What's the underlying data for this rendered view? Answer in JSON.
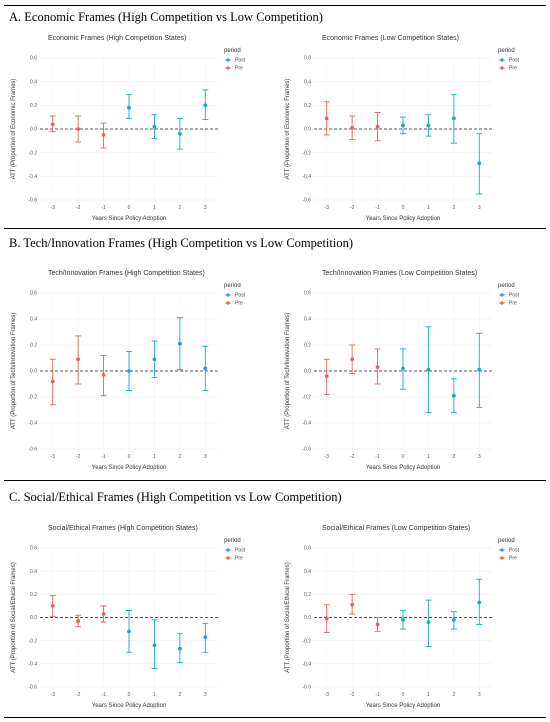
{
  "sections": [
    {
      "title": "A. Economic Frames (High Competition vs Low Competition)",
      "panels": [
        {
          "chart_data": {
            "type": "scatter",
            "title": "Economic Frames (High Competition States)",
            "xlabel": "Years Since Policy Adoption",
            "ylabel": "ATT (Proportion of Economic Frames)",
            "x": [
              -3,
              -2,
              -1,
              0,
              1,
              2,
              3
            ],
            "x_ticks": [
              "-3",
              "-2",
              "-1",
              "0",
              "1",
              "2",
              "3"
            ],
            "y_ticks": [
              "0.6",
              "0.4",
              "0.2",
              "0.0",
              "-0.2",
              "-0.4",
              "-0.6"
            ],
            "ylim": [
              -0.6,
              0.6
            ],
            "reference_line": 0,
            "legend_title": "period",
            "legend_position": "top-right",
            "series": [
              {
                "name": "Post",
                "color": "#1aa7c9",
                "points": [
                  {
                    "x": 0,
                    "y": 0.18,
                    "lo": 0.09,
                    "hi": 0.29
                  },
                  {
                    "x": 1,
                    "y": 0.02,
                    "lo": -0.08,
                    "hi": 0.12
                  },
                  {
                    "x": 2,
                    "y": -0.04,
                    "lo": -0.17,
                    "hi": 0.09
                  },
                  {
                    "x": 3,
                    "y": 0.2,
                    "lo": 0.08,
                    "hi": 0.33
                  }
                ]
              },
              {
                "name": "Pre",
                "color": "#e8605a",
                "points": [
                  {
                    "x": -3,
                    "y": 0.04,
                    "lo": -0.02,
                    "hi": 0.11
                  },
                  {
                    "x": -2,
                    "y": 0.0,
                    "lo": -0.11,
                    "hi": 0.11
                  },
                  {
                    "x": -1,
                    "y": -0.05,
                    "lo": -0.16,
                    "hi": 0.05
                  }
                ]
              }
            ]
          }
        },
        {
          "chart_data": {
            "type": "scatter",
            "title": "Economic Frames (Low Competition States)",
            "xlabel": "Years Since Policy Adoption",
            "ylabel": "ATT (Proportion of Economic Frames)",
            "x": [
              -3,
              -2,
              -1,
              0,
              1,
              2,
              3
            ],
            "x_ticks": [
              "-3",
              "-2",
              "-1",
              "0",
              "1",
              "2",
              "3"
            ],
            "y_ticks": [
              "0.6",
              "0.4",
              "0.2",
              "0.0",
              "-0.2",
              "-0.4",
              "-0.6"
            ],
            "ylim": [
              -0.6,
              0.6
            ],
            "reference_line": 0,
            "legend_title": "period",
            "legend_position": "top-right",
            "series": [
              {
                "name": "Post",
                "color": "#1aa7c9",
                "points": [
                  {
                    "x": 0,
                    "y": 0.03,
                    "lo": -0.04,
                    "hi": 0.1
                  },
                  {
                    "x": 1,
                    "y": 0.03,
                    "lo": -0.06,
                    "hi": 0.12
                  },
                  {
                    "x": 2,
                    "y": 0.09,
                    "lo": -0.12,
                    "hi": 0.29
                  },
                  {
                    "x": 3,
                    "y": -0.29,
                    "lo": -0.55,
                    "hi": -0.04
                  }
                ]
              },
              {
                "name": "Pre",
                "color": "#e8605a",
                "points": [
                  {
                    "x": -3,
                    "y": 0.09,
                    "lo": -0.05,
                    "hi": 0.23
                  },
                  {
                    "x": -2,
                    "y": 0.01,
                    "lo": -0.09,
                    "hi": 0.11
                  },
                  {
                    "x": -1,
                    "y": 0.02,
                    "lo": -0.1,
                    "hi": 0.14
                  }
                ]
              }
            ]
          }
        }
      ]
    },
    {
      "title": "B. Tech/Innovation Frames (High Competition vs Low Competition)",
      "panels": [
        {
          "chart_data": {
            "type": "scatter",
            "title": "Tech/Innovation Frames (High Competition States)",
            "xlabel": "Years Since Policy Adoption",
            "ylabel": "ATT (Proportion of Tech/Innovation Frames)",
            "x": [
              -3,
              -2,
              -1,
              0,
              1,
              2,
              3
            ],
            "x_ticks": [
              "-3",
              "-2",
              "-1",
              "0",
              "1",
              "2",
              "3"
            ],
            "y_ticks": [
              "0.6",
              "0.4",
              "0.2",
              "0.0",
              "-0.2",
              "-0.4",
              "-0.6"
            ],
            "ylim": [
              -0.6,
              0.6
            ],
            "reference_line": 0,
            "legend_title": "period",
            "legend_position": "top-right",
            "series": [
              {
                "name": "Post",
                "color": "#1aa7c9",
                "points": [
                  {
                    "x": 0,
                    "y": 0.0,
                    "lo": -0.15,
                    "hi": 0.15
                  },
                  {
                    "x": 1,
                    "y": 0.09,
                    "lo": -0.05,
                    "hi": 0.23
                  },
                  {
                    "x": 2,
                    "y": 0.21,
                    "lo": 0.01,
                    "hi": 0.41
                  },
                  {
                    "x": 3,
                    "y": 0.02,
                    "lo": -0.15,
                    "hi": 0.19
                  }
                ]
              },
              {
                "name": "Pre",
                "color": "#e8605a",
                "points": [
                  {
                    "x": -3,
                    "y": -0.08,
                    "lo": -0.26,
                    "hi": 0.09
                  },
                  {
                    "x": -2,
                    "y": 0.09,
                    "lo": -0.1,
                    "hi": 0.27
                  },
                  {
                    "x": -1,
                    "y": -0.03,
                    "lo": -0.19,
                    "hi": 0.12
                  }
                ]
              }
            ]
          }
        },
        {
          "chart_data": {
            "type": "scatter",
            "title": "Tech/Innovation Frames (Low Competition States)",
            "xlabel": "Years Since Policy Adoption",
            "ylabel": "ATT (Proportion of Tech/Innovation Frames)",
            "x": [
              -3,
              -2,
              -1,
              0,
              1,
              2,
              3
            ],
            "x_ticks": [
              "-3",
              "-2",
              "-1",
              "0",
              "1",
              "2",
              "3"
            ],
            "y_ticks": [
              "0.6",
              "0.4",
              "0.2",
              "0.0",
              "-0.2",
              "-0.4",
              "-0.6"
            ],
            "ylim": [
              -0.6,
              0.6
            ],
            "reference_line": 0,
            "legend_title": "period",
            "legend_position": "top-right",
            "series": [
              {
                "name": "Post",
                "color": "#1aa7c9",
                "points": [
                  {
                    "x": 0,
                    "y": 0.02,
                    "lo": -0.14,
                    "hi": 0.17
                  },
                  {
                    "x": 1,
                    "y": 0.01,
                    "lo": -0.32,
                    "hi": 0.34
                  },
                  {
                    "x": 2,
                    "y": -0.19,
                    "lo": -0.32,
                    "hi": -0.06
                  },
                  {
                    "x": 3,
                    "y": 0.01,
                    "lo": -0.28,
                    "hi": 0.29
                  }
                ]
              },
              {
                "name": "Pre",
                "color": "#e8605a",
                "points": [
                  {
                    "x": -3,
                    "y": -0.04,
                    "lo": -0.18,
                    "hi": 0.09
                  },
                  {
                    "x": -2,
                    "y": 0.09,
                    "lo": -0.02,
                    "hi": 0.2
                  },
                  {
                    "x": -1,
                    "y": 0.03,
                    "lo": -0.1,
                    "hi": 0.17
                  }
                ]
              }
            ]
          }
        }
      ]
    },
    {
      "title": "C. Social/Ethical Frames (High Competition vs Low Competition)",
      "panels": [
        {
          "chart_data": {
            "type": "scatter",
            "title": "Social/Ethical Frames (High Competition States)",
            "xlabel": "Years Since Policy Adoption",
            "ylabel": "ATT (Proportion of Social/Ethical Frames)",
            "x": [
              -3,
              -2,
              -1,
              0,
              1,
              2,
              3
            ],
            "x_ticks": [
              "-3",
              "-2",
              "-1",
              "0",
              "1",
              "2",
              "3"
            ],
            "y_ticks": [
              "0.6",
              "0.4",
              "0.2",
              "0.0",
              "-0.2",
              "-0.4",
              "-0.6"
            ],
            "ylim": [
              -0.6,
              0.6
            ],
            "reference_line": 0,
            "legend_title": "period",
            "legend_position": "top-right",
            "series": [
              {
                "name": "Post",
                "color": "#1aa7c9",
                "points": [
                  {
                    "x": 0,
                    "y": -0.12,
                    "lo": -0.3,
                    "hi": 0.06
                  },
                  {
                    "x": 1,
                    "y": -0.24,
                    "lo": -0.44,
                    "hi": -0.02
                  },
                  {
                    "x": 2,
                    "y": -0.27,
                    "lo": -0.39,
                    "hi": -0.14
                  },
                  {
                    "x": 3,
                    "y": -0.17,
                    "lo": -0.3,
                    "hi": -0.05
                  }
                ]
              },
              {
                "name": "Pre",
                "color": "#e8605a",
                "points": [
                  {
                    "x": -3,
                    "y": 0.1,
                    "lo": 0.01,
                    "hi": 0.19
                  },
                  {
                    "x": -2,
                    "y": -0.03,
                    "lo": -0.08,
                    "hi": 0.02
                  },
                  {
                    "x": -1,
                    "y": 0.03,
                    "lo": -0.04,
                    "hi": 0.1
                  }
                ]
              }
            ]
          }
        },
        {
          "chart_data": {
            "type": "scatter",
            "title": "Social/Ethical Frames (Low Competition States)",
            "xlabel": "Years Since Policy Adoption",
            "ylabel": "ATT (Proportion of Social/Ethical Frames)",
            "x": [
              -3,
              -2,
              -1,
              0,
              1,
              2,
              3
            ],
            "x_ticks": [
              "-3",
              "-2",
              "-1",
              "0",
              "1",
              "2",
              "3"
            ],
            "y_ticks": [
              "0.6",
              "0.4",
              "0.2",
              "0.0",
              "-0.2",
              "-0.4",
              "-0.6"
            ],
            "ylim": [
              -0.6,
              0.6
            ],
            "reference_line": 0,
            "legend_title": "period",
            "legend_position": "top-right",
            "series": [
              {
                "name": "Post",
                "color": "#1aa7c9",
                "points": [
                  {
                    "x": 0,
                    "y": -0.02,
                    "lo": -0.1,
                    "hi": 0.06
                  },
                  {
                    "x": 1,
                    "y": -0.04,
                    "lo": -0.25,
                    "hi": 0.15
                  },
                  {
                    "x": 2,
                    "y": -0.02,
                    "lo": -0.1,
                    "hi": 0.05
                  },
                  {
                    "x": 3,
                    "y": 0.13,
                    "lo": -0.06,
                    "hi": 0.33
                  }
                ]
              },
              {
                "name": "Pre",
                "color": "#e8605a",
                "points": [
                  {
                    "x": -3,
                    "y": -0.01,
                    "lo": -0.13,
                    "hi": 0.11
                  },
                  {
                    "x": -2,
                    "y": 0.11,
                    "lo": 0.03,
                    "hi": 0.2
                  },
                  {
                    "x": -1,
                    "y": -0.06,
                    "lo": -0.12,
                    "hi": 0.0
                  }
                ]
              }
            ]
          }
        }
      ]
    }
  ]
}
